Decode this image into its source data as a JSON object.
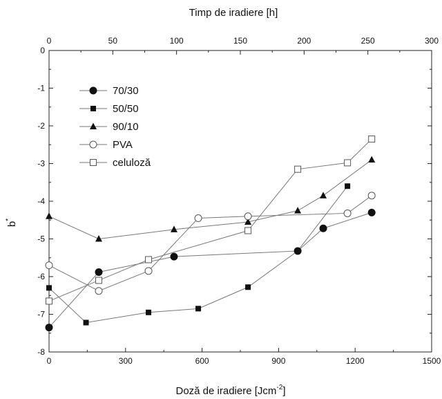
{
  "chart_data": {
    "type": "line",
    "xlabel": "Doză de iradiere [Jcm",
    "xlabel_sup": "-2",
    "xlabel_end": "]",
    "ylabel": "b",
    "ylabel_sup": "*",
    "top_xlabel": "Timp de iradiere [h]",
    "xlim": [
      0,
      1500
    ],
    "ylim": [
      -8,
      0
    ],
    "top_xlim": [
      0,
      300
    ],
    "x_ticks": [
      0,
      300,
      600,
      900,
      1200,
      1500
    ],
    "x_tick_labels": [
      "0",
      "300",
      "600",
      "900",
      "1200",
      "1500"
    ],
    "top_x_ticks": [
      0,
      50,
      100,
      150,
      200,
      250,
      300
    ],
    "top_x_tick_labels": [
      "0",
      "50",
      "100",
      "150",
      "200",
      "250",
      "300"
    ],
    "y_ticks": [
      0,
      -1,
      -2,
      -3,
      -4,
      -5,
      -6,
      -7,
      -8
    ],
    "y_tick_labels": [
      "0",
      "-1",
      "-2",
      "-3",
      "-4",
      "-5",
      "-6",
      "-7",
      "-8"
    ],
    "grid": false,
    "legend_position": "top-left",
    "series": [
      {
        "name": "70/30",
        "marker": "circle-filled",
        "x": [
          0,
          195,
          490,
          975,
          1075,
          1265
        ],
        "y": [
          -7.35,
          -5.88,
          -5.47,
          -5.32,
          -4.72,
          -4.3
        ]
      },
      {
        "name": "50/50",
        "marker": "square-filled",
        "x": [
          0,
          145,
          390,
          585,
          780,
          975,
          1170
        ],
        "y": [
          -6.3,
          -7.22,
          -6.95,
          -6.85,
          -6.28,
          -5.32,
          -3.6
        ]
      },
      {
        "name": "90/10",
        "marker": "triangle-filled",
        "x": [
          0,
          195,
          490,
          780,
          975,
          1075,
          1265
        ],
        "y": [
          -4.4,
          -5.0,
          -4.75,
          -4.55,
          -4.25,
          -3.85,
          -2.9
        ]
      },
      {
        "name": "PVA",
        "marker": "circle-open",
        "x": [
          0,
          195,
          390,
          585,
          780,
          1170,
          1265
        ],
        "y": [
          -5.7,
          -6.38,
          -5.85,
          -4.45,
          -4.4,
          -4.32,
          -3.85
        ]
      },
      {
        "name": "celuloză",
        "marker": "square-open",
        "x": [
          0,
          195,
          390,
          780,
          975,
          1170,
          1265
        ],
        "y": [
          -6.65,
          -6.1,
          -5.55,
          -4.78,
          -3.15,
          -2.98,
          -2.35
        ]
      }
    ]
  }
}
